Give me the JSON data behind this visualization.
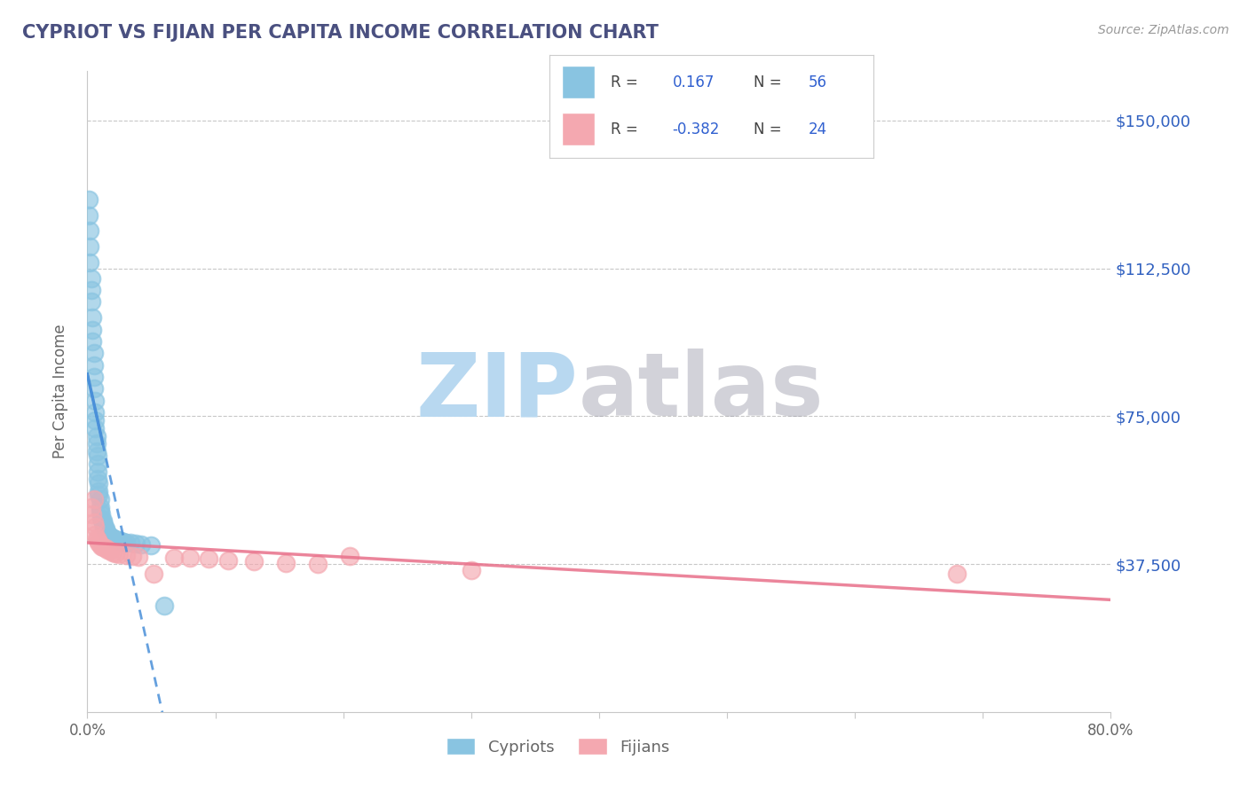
{
  "title": "CYPRIOT VS FIJIAN PER CAPITA INCOME CORRELATION CHART",
  "source_text": "Source: ZipAtlas.com",
  "ylabel": "Per Capita Income",
  "xlim": [
    0.0,
    0.8
  ],
  "ylim": [
    0,
    162500
  ],
  "yticks": [
    0,
    37500,
    75000,
    112500,
    150000
  ],
  "ytick_labels": [
    "",
    "$37,500",
    "$75,000",
    "$112,500",
    "$150,000"
  ],
  "xticks": [
    0.0,
    0.1,
    0.2,
    0.3,
    0.4,
    0.5,
    0.6,
    0.7,
    0.8
  ],
  "xtick_labels": [
    "0.0%",
    "",
    "",
    "",
    "",
    "",
    "",
    "",
    "80.0%"
  ],
  "cypriot_color": "#89c4e1",
  "fijian_color": "#f4a8b0",
  "cypriot_line_color": "#4a90d9",
  "fijian_line_color": "#e8708a",
  "background_color": "#ffffff",
  "grid_color": "#c8c8c8",
  "title_color": "#4a5080",
  "axis_label_color": "#666666",
  "tick_color": "#666666",
  "right_tick_color": "#3060c0",
  "cypriot_scatter_x": [
    0.001,
    0.001,
    0.002,
    0.002,
    0.002,
    0.003,
    0.003,
    0.003,
    0.004,
    0.004,
    0.004,
    0.005,
    0.005,
    0.005,
    0.005,
    0.006,
    0.006,
    0.006,
    0.006,
    0.007,
    0.007,
    0.007,
    0.008,
    0.008,
    0.008,
    0.008,
    0.009,
    0.009,
    0.009,
    0.01,
    0.01,
    0.01,
    0.011,
    0.011,
    0.012,
    0.012,
    0.013,
    0.013,
    0.014,
    0.014,
    0.015,
    0.016,
    0.017,
    0.018,
    0.019,
    0.02,
    0.022,
    0.024,
    0.026,
    0.028,
    0.03,
    0.034,
    0.038,
    0.042,
    0.05,
    0.06
  ],
  "cypriot_scatter_y": [
    130000,
    126000,
    122000,
    118000,
    114000,
    110000,
    107000,
    104000,
    100000,
    97000,
    94000,
    91000,
    88000,
    85000,
    82000,
    79000,
    76000,
    74000,
    72000,
    70000,
    68000,
    66000,
    65000,
    63000,
    61000,
    59000,
    58000,
    56000,
    55000,
    54000,
    52000,
    51000,
    50000,
    49000,
    48500,
    48000,
    47500,
    47000,
    46500,
    46000,
    45500,
    45000,
    44800,
    44500,
    44200,
    44000,
    43800,
    43600,
    43400,
    43200,
    43000,
    42800,
    42600,
    42400,
    42200,
    27000
  ],
  "fijian_scatter_x": [
    0.003,
    0.004,
    0.005,
    0.005,
    0.006,
    0.006,
    0.007,
    0.008,
    0.009,
    0.01,
    0.011,
    0.012,
    0.014,
    0.016,
    0.018,
    0.02,
    0.022,
    0.025,
    0.03,
    0.035,
    0.04,
    0.052,
    0.068,
    0.08,
    0.095,
    0.11,
    0.13,
    0.155,
    0.18,
    0.205,
    0.3,
    0.68
  ],
  "fijian_scatter_y": [
    52000,
    50000,
    54000,
    48000,
    47000,
    45000,
    44000,
    43500,
    43000,
    42500,
    42000,
    41800,
    41500,
    41200,
    40800,
    40500,
    40300,
    40000,
    39800,
    39600,
    39400,
    35000,
    39200,
    39000,
    38800,
    38500,
    38200,
    37800,
    37500,
    39500,
    36000,
    35000
  ],
  "watermark_zip_color": "#b8d8f0",
  "watermark_atlas_color": "#9090a0"
}
